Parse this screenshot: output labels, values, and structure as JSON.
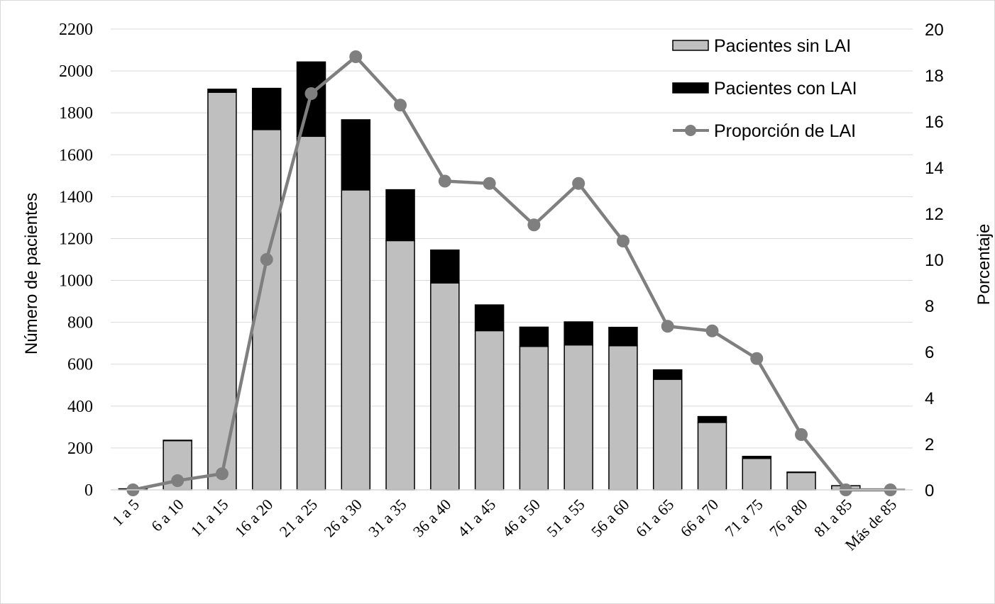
{
  "chart_data": {
    "type": "bar",
    "stacked": true,
    "categories": [
      "1 a 5",
      "6 a 10",
      "11 a 15",
      "16 a 20",
      "21 a 25",
      "26 a 30",
      "31 a 35",
      "36 a 40",
      "41 a 45",
      "46 a 50",
      "51 a 55",
      "56 a 60",
      "61 a 65",
      "66 a 70",
      "71 a 75",
      "76 a 80",
      "81 a 85",
      "Más de 85"
    ],
    "series": [
      {
        "name": "Pacientes sin LAI",
        "kind": "bar",
        "axis": "left",
        "color": "#bfbfbf",
        "values": [
          5,
          235,
          1898,
          1720,
          1688,
          1432,
          1190,
          988,
          760,
          685,
          692,
          688,
          528,
          322,
          150,
          83,
          20,
          2
        ]
      },
      {
        "name": "Pacientes con LAI",
        "kind": "bar",
        "axis": "left",
        "color": "#000000",
        "values": [
          0,
          2,
          15,
          197,
          355,
          335,
          243,
          157,
          123,
          92,
          110,
          88,
          45,
          28,
          10,
          2,
          0,
          0
        ]
      },
      {
        "name": "Proporción de LAI",
        "kind": "line",
        "axis": "right",
        "color": "#7f7f7f",
        "values": [
          0,
          0.4,
          0.7,
          10.0,
          17.2,
          18.8,
          16.7,
          13.4,
          13.3,
          11.5,
          13.3,
          10.8,
          7.1,
          6.9,
          5.7,
          2.4,
          0,
          0
        ]
      }
    ],
    "ylabel": "Número de pacientes",
    "ylabel_right": "Porcentaje",
    "ylim": [
      0,
      2200
    ],
    "yticks": [
      0,
      200,
      400,
      600,
      800,
      1000,
      1200,
      1400,
      1600,
      1800,
      2000,
      2200
    ],
    "ylim_right": [
      0,
      20
    ],
    "yticks_right": [
      0,
      2,
      4,
      6,
      8,
      10,
      12,
      14,
      16,
      18,
      20
    ],
    "grid": true,
    "legend_position": "top-right"
  }
}
